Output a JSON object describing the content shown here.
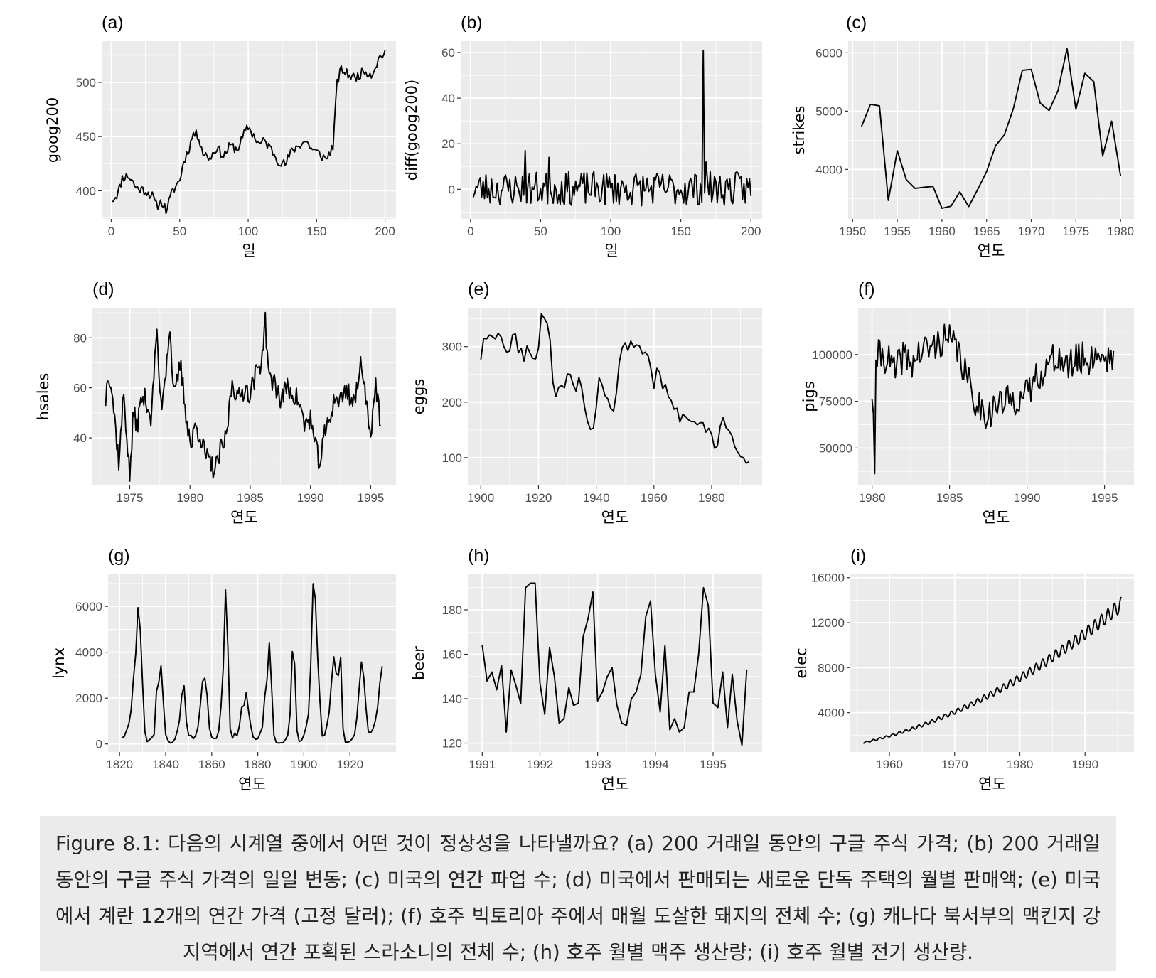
{
  "caption": "Figure 8.1: 다음의 시계열 중에서 어떤 것이 정상성을 나타낼까요? (a) 200 거래일 동안의 구글 주식 가격; (b) 200 거래일 동안의 구글 주식 가격의 일일 변동; (c) 미국의 연간 파업 수; (d) 미국에서 판매되는 새로운 단독 주택의 월별 판매액; (e) 미국에서 계란 12개의 연간 가격 (고정 달러); (f) 호주 빅토리아 주에서 매월 도살한 돼지의 전체 수; (g) 캐나다 북서부의 맥킨지 강 지역에서 연간 포획된 스라소니의 전체 수; (h) 호주 월별 맥주 생산량; (i) 호주 월별 전기 생산량.",
  "colors": {
    "panel_bg": "#ebebeb",
    "grid": "#ffffff",
    "line": "#000000",
    "tick_text": "#4d4d4d",
    "caption_bg": "#ebebeb"
  },
  "chart_data": [
    {
      "id": "a",
      "label": "(a)",
      "type": "line",
      "xlabel": "일",
      "ylabel": "goog200",
      "xlim": [
        -7,
        208
      ],
      "ylim": [
        374,
        538
      ],
      "xticks": [
        0,
        50,
        100,
        150,
        200
      ],
      "yticks": [
        400,
        450,
        500
      ],
      "tick_labels_x": [
        "0",
        "50",
        "100",
        "150",
        "200"
      ],
      "tick_labels_y": [
        "400",
        "450",
        "500"
      ],
      "generator": "goog",
      "anchors": [
        [
          1,
          392
        ],
        [
          5,
          398
        ],
        [
          8,
          412
        ],
        [
          12,
          414
        ],
        [
          15,
          410
        ],
        [
          18,
          403
        ],
        [
          25,
          400
        ],
        [
          30,
          395
        ],
        [
          33,
          386
        ],
        [
          37,
          390
        ],
        [
          40,
          382
        ],
        [
          45,
          400
        ],
        [
          50,
          410
        ],
        [
          53,
          427
        ],
        [
          57,
          440
        ],
        [
          60,
          453
        ],
        [
          64,
          450
        ],
        [
          67,
          435
        ],
        [
          72,
          430
        ],
        [
          77,
          440
        ],
        [
          82,
          432
        ],
        [
          87,
          442
        ],
        [
          92,
          438
        ],
        [
          97,
          452
        ],
        [
          100,
          459
        ],
        [
          104,
          451
        ],
        [
          108,
          443
        ],
        [
          112,
          446
        ],
        [
          117,
          438
        ],
        [
          122,
          428
        ],
        [
          127,
          424
        ],
        [
          132,
          437
        ],
        [
          137,
          442
        ],
        [
          142,
          446
        ],
        [
          147,
          438
        ],
        [
          152,
          434
        ],
        [
          157,
          429
        ],
        [
          162,
          441
        ],
        [
          165,
          500
        ],
        [
          168,
          512
        ],
        [
          172,
          508
        ],
        [
          178,
          504
        ],
        [
          185,
          511
        ],
        [
          190,
          507
        ],
        [
          196,
          523
        ],
        [
          200,
          528
        ]
      ]
    },
    {
      "id": "b",
      "label": "(b)",
      "type": "line",
      "xlabel": "일",
      "ylabel": "diff(goog200)",
      "xlim": [
        -7,
        208
      ],
      "ylim": [
        -13,
        65
      ],
      "xticks": [
        0,
        50,
        100,
        150,
        200
      ],
      "yticks": [
        0,
        20,
        40,
        60
      ],
      "tick_labels_x": [
        "0",
        "50",
        "100",
        "150",
        "200"
      ],
      "tick_labels_y": [
        "0",
        "20",
        "40",
        "60"
      ],
      "generator": "diff",
      "spikes": [
        [
          39,
          17
        ],
        [
          56,
          14
        ],
        [
          166,
          61
        ],
        [
          168,
          12
        ]
      ]
    },
    {
      "id": "c",
      "label": "(c)",
      "type": "line",
      "xlabel": "연도",
      "ylabel": "strikes",
      "xlim": [
        1949.5,
        1981.5
      ],
      "ylim": [
        3150,
        6200
      ],
      "xticks": [
        1950,
        1955,
        1960,
        1965,
        1970,
        1975,
        1980
      ],
      "yticks": [
        4000,
        5000,
        6000
      ],
      "tick_labels_x": [
        "1950",
        "1955",
        "1960",
        "1965",
        "1970",
        "1975",
        "1980"
      ],
      "tick_labels_y": [
        "4000",
        "5000",
        "6000"
      ],
      "x": [
        1951,
        1952,
        1953,
        1954,
        1955,
        1956,
        1957,
        1958,
        1959,
        1960,
        1961,
        1962,
        1963,
        1964,
        1965,
        1966,
        1967,
        1968,
        1969,
        1970,
        1971,
        1972,
        1973,
        1974,
        1975,
        1976,
        1977,
        1978,
        1979,
        1980
      ],
      "y": [
        4737,
        5117,
        5091,
        3468,
        4320,
        3825,
        3673,
        3694,
        3708,
        3333,
        3367,
        3614,
        3362,
        3655,
        3963,
        4405,
        4595,
        5045,
        5700,
        5716,
        5138,
        5010,
        5353,
        6074,
        5031,
        5648,
        5506,
        4230,
        4827,
        3885
      ]
    },
    {
      "id": "d",
      "label": "(d)",
      "type": "line",
      "xlabel": "연도",
      "ylabel": "hsales",
      "xlim": [
        1971.9,
        1997.1
      ],
      "ylim": [
        21,
        92
      ],
      "xticks": [
        1975,
        1980,
        1985,
        1990,
        1995
      ],
      "yticks": [
        40,
        60,
        80
      ],
      "tick_labels_x": [
        "1975",
        "1980",
        "1985",
        "1990",
        "1995"
      ],
      "tick_labels_y": [
        "40",
        "60",
        "80"
      ],
      "generator": "hsales",
      "anchors": [
        [
          1973.0,
          55
        ],
        [
          1973.2,
          68
        ],
        [
          1973.5,
          60
        ],
        [
          1973.8,
          45
        ],
        [
          1974.1,
          30
        ],
        [
          1974.5,
          58
        ],
        [
          1975.0,
          24
        ],
        [
          1975.3,
          50
        ],
        [
          1975.6,
          45
        ],
        [
          1976.0,
          56
        ],
        [
          1976.4,
          55
        ],
        [
          1976.8,
          47
        ],
        [
          1977.2,
          83
        ],
        [
          1977.6,
          52
        ],
        [
          1978.0,
          68
        ],
        [
          1978.3,
          85
        ],
        [
          1978.7,
          55
        ],
        [
          1979.2,
          70
        ],
        [
          1979.6,
          52
        ],
        [
          1980.1,
          36
        ],
        [
          1980.4,
          45
        ],
        [
          1980.8,
          42
        ],
        [
          1981.2,
          34
        ],
        [
          1981.6,
          30
        ],
        [
          1982.1,
          27
        ],
        [
          1982.5,
          34
        ],
        [
          1983.0,
          40
        ],
        [
          1983.5,
          63
        ],
        [
          1984.0,
          55
        ],
        [
          1984.5,
          60
        ],
        [
          1985.0,
          58
        ],
        [
          1985.5,
          66
        ],
        [
          1986.0,
          72
        ],
        [
          1986.2,
          89
        ],
        [
          1986.6,
          62
        ],
        [
          1987.0,
          63
        ],
        [
          1987.5,
          55
        ],
        [
          1988.0,
          60
        ],
        [
          1988.5,
          58
        ],
        [
          1989.0,
          55
        ],
        [
          1989.5,
          45
        ],
        [
          1990.0,
          48
        ],
        [
          1990.4,
          36
        ],
        [
          1990.8,
          30
        ],
        [
          1991.2,
          42
        ],
        [
          1991.6,
          48
        ],
        [
          1992.0,
          56
        ],
        [
          1992.5,
          55
        ],
        [
          1993.0,
          60
        ],
        [
          1993.5,
          54
        ],
        [
          1994.0,
          60
        ],
        [
          1994.2,
          74
        ],
        [
          1994.6,
          55
        ],
        [
          1995.0,
          42
        ],
        [
          1995.4,
          62
        ],
        [
          1995.8,
          45
        ]
      ]
    },
    {
      "id": "e",
      "label": "(e)",
      "type": "line",
      "xlabel": "연도",
      "ylabel": "eggs",
      "xlim": [
        1895.5,
        1997.5
      ],
      "ylim": [
        50,
        370
      ],
      "xticks": [
        1900,
        1920,
        1940,
        1960,
        1980
      ],
      "yticks": [
        100,
        200,
        300
      ],
      "tick_labels_x": [
        "1900",
        "1920",
        "1940",
        "1960",
        "1980"
      ],
      "tick_labels_y": [
        "100",
        "200",
        "300"
      ],
      "x_start": 1900,
      "y": [
        277,
        315,
        314,
        321,
        318,
        314,
        324,
        318,
        300,
        290,
        292,
        321,
        323,
        289,
        297,
        274,
        301,
        289,
        279,
        278,
        297,
        359,
        351,
        342,
        312,
        236,
        210,
        227,
        230,
        226,
        251,
        250,
        232,
        220,
        245,
        225,
        190,
        165,
        151,
        153,
        190,
        244,
        232,
        212,
        206,
        189,
        184,
        217,
        272,
        298,
        307,
        293,
        310,
        299,
        303,
        301,
        287,
        290,
        283,
        259,
        225,
        261,
        253,
        224,
        232,
        210,
        203,
        187,
        189,
        164,
        178,
        174,
        168,
        165,
        165,
        159,
        163,
        163,
        146,
        153,
        142,
        117,
        121,
        157,
        172,
        154,
        149,
        140,
        120,
        110,
        102,
        100,
        90,
        93
      ]
    },
    {
      "id": "f",
      "label": "(f)",
      "type": "line",
      "xlabel": "연도",
      "ylabel": "pigs",
      "xlim": [
        1979.1,
        1996.9
      ],
      "ylim": [
        30000,
        125000
      ],
      "xticks": [
        1980,
        1985,
        1990,
        1995
      ],
      "yticks": [
        50000,
        75000,
        100000
      ],
      "tick_labels_x": [
        "1980",
        "1985",
        "1990",
        "1995"
      ],
      "tick_labels_y": [
        "50000",
        "75000",
        "100000"
      ],
      "generator": "pigs",
      "anchors": [
        [
          1980.0,
          76000
        ],
        [
          1980.08,
          70000
        ],
        [
          1980.17,
          35000
        ],
        [
          1980.25,
          97000
        ],
        [
          1980.5,
          100000
        ],
        [
          1981.0,
          98000
        ],
        [
          1981.5,
          90000
        ],
        [
          1982.0,
          100000
        ],
        [
          1982.5,
          95000
        ],
        [
          1983.0,
          100000
        ],
        [
          1983.5,
          103000
        ],
        [
          1984.0,
          104000
        ],
        [
          1984.5,
          108000
        ],
        [
          1985.0,
          107000
        ],
        [
          1985.5,
          103000
        ],
        [
          1986.0,
          90000
        ],
        [
          1986.5,
          78000
        ],
        [
          1987.0,
          72000
        ],
        [
          1987.5,
          68000
        ],
        [
          1988.0,
          73000
        ],
        [
          1988.5,
          74000
        ],
        [
          1989.0,
          76000
        ],
        [
          1989.5,
          77000
        ],
        [
          1990.0,
          78000
        ],
        [
          1990.5,
          87000
        ],
        [
          1991.0,
          92000
        ],
        [
          1991.5,
          95000
        ],
        [
          1992.0,
          100000
        ],
        [
          1992.5,
          92000
        ],
        [
          1993.0,
          96000
        ],
        [
          1993.5,
          98000
        ],
        [
          1994.0,
          97000
        ],
        [
          1994.5,
          101000
        ],
        [
          1995.0,
          98000
        ],
        [
          1995.5,
          100000
        ]
      ]
    },
    {
      "id": "g",
      "label": "(g)",
      "type": "line",
      "xlabel": "연도",
      "ylabel": "lynx",
      "xlim": [
        1815,
        1940
      ],
      "ylim": [
        -350,
        7400
      ],
      "xticks": [
        1820,
        1840,
        1860,
        1880,
        1900,
        1920
      ],
      "yticks": [
        0,
        2000,
        4000,
        6000
      ],
      "tick_labels_x": [
        "1820",
        "1840",
        "1860",
        "1880",
        "1900",
        "1920"
      ],
      "tick_labels_y": [
        "0",
        "2000",
        "4000",
        "6000"
      ],
      "x_start": 1821,
      "y": [
        269,
        321,
        585,
        871,
        1475,
        2821,
        3928,
        5943,
        4950,
        2577,
        523,
        98,
        184,
        279,
        409,
        2285,
        2685,
        3409,
        1824,
        409,
        151,
        45,
        68,
        213,
        546,
        1033,
        2129,
        2536,
        957,
        361,
        377,
        225,
        360,
        731,
        1638,
        2725,
        2871,
        2119,
        684,
        299,
        236,
        245,
        552,
        1623,
        3311,
        6721,
        4254,
        687,
        255,
        473,
        358,
        784,
        1594,
        1676,
        2251,
        1426,
        756,
        299,
        201,
        229,
        469,
        736,
        2042,
        2811,
        4431,
        2511,
        389,
        73,
        39,
        49,
        59,
        188,
        377,
        1292,
        4031,
        3495,
        587,
        105,
        153,
        387,
        758,
        1307,
        3465,
        6991,
        6313,
        3794,
        1836,
        345,
        382,
        808,
        1388,
        2713,
        3800,
        3091,
        2985,
        3790,
        674,
        81,
        80,
        108,
        229,
        399,
        1132,
        2432,
        3574,
        2935,
        1537,
        529,
        485,
        662,
        1000,
        1590,
        2657,
        3396
      ]
    },
    {
      "id": "h",
      "label": "(h)",
      "type": "line",
      "xlabel": "연도",
      "ylabel": "beer",
      "xlim": [
        1990.75,
        1995.85
      ],
      "ylim": [
        116,
        196
      ],
      "xticks": [
        1991,
        1992,
        1993,
        1994,
        1995
      ],
      "yticks": [
        120,
        140,
        160,
        180
      ],
      "tick_labels_x": [
        "1991",
        "1992",
        "1993",
        "1994",
        "1995"
      ],
      "tick_labels_y": [
        "120",
        "140",
        "160",
        "180"
      ],
      "x_start": 1991,
      "x_step": 0.08333,
      "y": [
        164,
        148,
        152,
        144,
        155,
        125,
        153,
        146,
        138,
        190,
        192,
        192,
        147,
        133,
        163,
        150,
        129,
        131,
        145,
        137,
        138,
        168,
        176,
        188,
        139,
        143,
        150,
        154,
        137,
        129,
        128,
        140,
        143,
        151,
        177,
        184,
        151,
        134,
        164,
        126,
        131,
        125,
        127,
        143,
        143,
        160,
        190,
        182,
        138,
        136,
        152,
        127,
        151,
        130,
        119,
        153
      ]
    },
    {
      "id": "i",
      "label": "(i)",
      "type": "line",
      "xlabel": "연도",
      "ylabel": "elec",
      "xlim": [
        1954.0,
        1997.5
      ],
      "ylim": [
        500,
        16300
      ],
      "xticks": [
        1960,
        1970,
        1980,
        1990
      ],
      "yticks": [
        4000,
        8000,
        12000,
        16000
      ],
      "tick_labels_x": [
        "1960",
        "1970",
        "1980",
        "1990"
      ],
      "tick_labels_y": [
        "4000",
        "8000",
        "12000",
        "16000"
      ],
      "generator": "elec"
    }
  ]
}
